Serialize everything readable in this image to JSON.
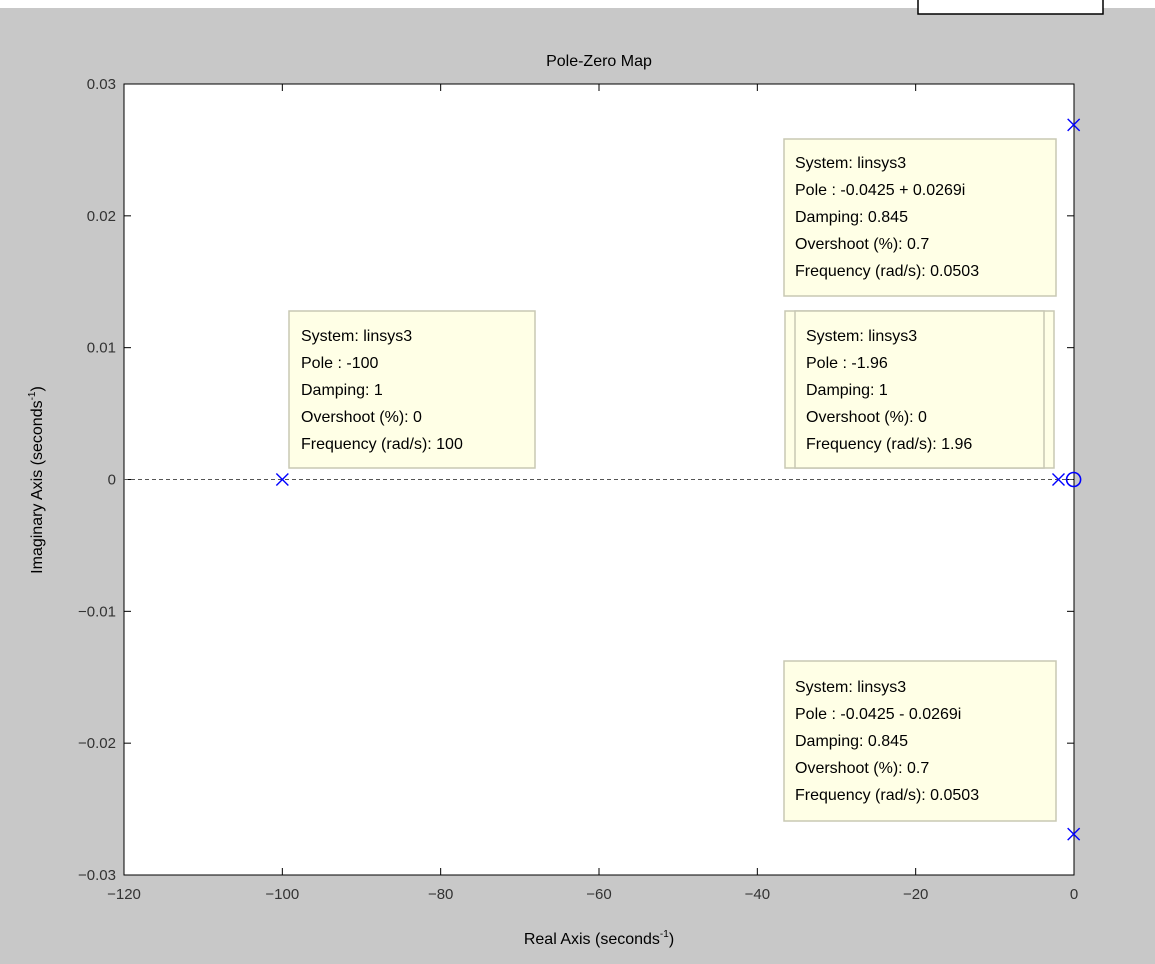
{
  "chart_data": {
    "type": "scatter",
    "title": "Pole-Zero Map",
    "xlabel": "Real Axis (seconds",
    "ylabel": "Imaginary Axis (seconds",
    "axis_unit_exponent": "-1",
    "xlim": [
      -120,
      0
    ],
    "ylim": [
      -0.03,
      0.03
    ],
    "xticks": [
      -120,
      -100,
      -80,
      -60,
      -40,
      -20,
      0
    ],
    "yticks": [
      -0.03,
      -0.02,
      -0.01,
      0,
      0.01,
      0.02,
      0.03
    ],
    "xtick_labels": [
      "−120",
      "−100",
      "−80",
      "−60",
      "−40",
      "−20",
      "0"
    ],
    "ytick_labels": [
      "−0.03",
      "−0.02",
      "−0.01",
      "0",
      "0.01",
      "0.02",
      "0.03"
    ],
    "grid": false,
    "zero_line": true,
    "marker_color": "#0000ff",
    "poles": [
      {
        "re": -100,
        "im": 0
      },
      {
        "re": -1.96,
        "im": 0
      },
      {
        "re": -0.0425,
        "im": 0.0269
      },
      {
        "re": -0.0425,
        "im": -0.0269
      }
    ],
    "zeros": [
      {
        "re": -0.05,
        "im": 0
      }
    ]
  },
  "datatips": [
    {
      "id": "pole-minus-100",
      "lines": [
        "System: linsys3",
        "Pole : -100",
        "Damping: 1",
        "Overshoot (%): 0",
        "Frequency (rad/s): 100"
      ]
    },
    {
      "id": "pole-complex-upper",
      "lines": [
        "System: linsys3",
        "Pole : -0.0425 + 0.0269i",
        "Damping: 0.845",
        "Overshoot (%): 0.7",
        "Frequency (rad/s): 0.0503"
      ]
    },
    {
      "id": "pole-minus-1-96",
      "lines": [
        "System: linsys3",
        "Pole : -1.96",
        "Damping: 1",
        "Overshoot (%): 0",
        "Frequency (rad/s): 1.96"
      ]
    },
    {
      "id": "pole-complex-lower",
      "lines": [
        "System: linsys3",
        "Pole : -0.0425 - 0.0269i",
        "Damping: 0.845",
        "Overshoot (%): 0.7",
        "Frequency (rad/s): 0.0503"
      ]
    }
  ]
}
